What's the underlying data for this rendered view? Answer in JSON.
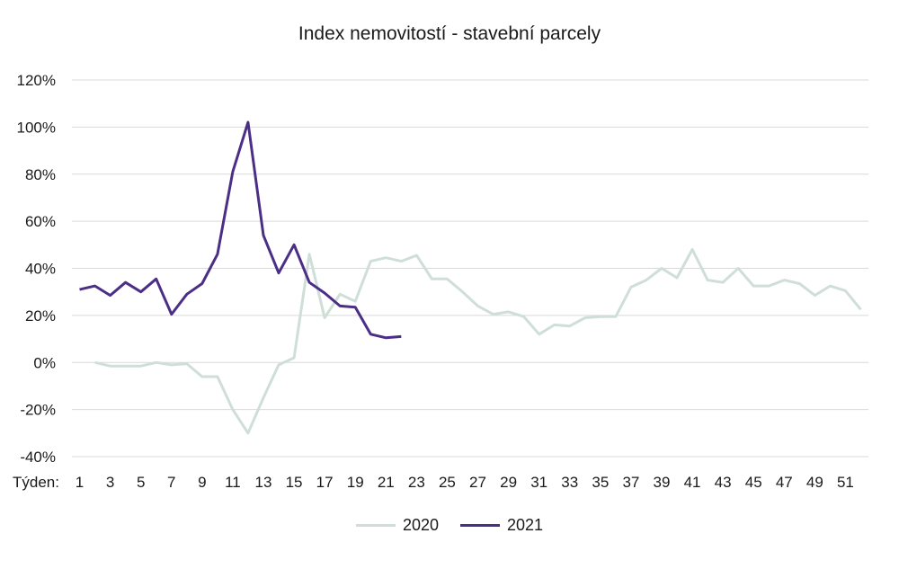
{
  "chart_data": {
    "type": "line",
    "title": "Index nemovitostí - stavební parcely",
    "xlabel": "Týden:",
    "ylabel": "",
    "ylim": [
      -40,
      120
    ],
    "y_ticks": [
      "120%",
      "100%",
      "80%",
      "60%",
      "40%",
      "20%",
      "0%",
      "-20%",
      "-40%"
    ],
    "y_tick_values": [
      120,
      100,
      80,
      60,
      40,
      20,
      0,
      -20,
      -40
    ],
    "x_range": [
      1,
      52
    ],
    "x_tick_labels": [
      "1",
      "3",
      "5",
      "7",
      "9",
      "11",
      "13",
      "15",
      "17",
      "19",
      "21",
      "23",
      "25",
      "27",
      "29",
      "31",
      "33",
      "35",
      "37",
      "39",
      "41",
      "43",
      "45",
      "47",
      "49",
      "51"
    ],
    "grid": "horizontal",
    "legend_position": "bottom",
    "series": [
      {
        "name": "2020",
        "color": "#cfdfd7",
        "x": [
          2,
          3,
          4,
          5,
          6,
          7,
          8,
          9,
          10,
          11,
          12,
          13,
          14,
          15,
          16,
          17,
          18,
          19,
          20,
          21,
          22,
          23,
          24,
          25,
          26,
          27,
          28,
          29,
          30,
          31,
          32,
          33,
          34,
          35,
          36,
          37,
          38,
          39,
          40,
          41,
          42,
          43,
          44,
          45,
          46,
          47,
          48,
          49,
          50,
          51,
          52
        ],
        "values": [
          0,
          -1.5,
          -1.5,
          -1.5,
          0,
          -1,
          -0.5,
          -6,
          -6,
          -20,
          -30,
          -15,
          -1,
          2,
          46,
          19,
          29,
          26,
          43,
          44.5,
          43,
          45.5,
          35.5,
          35.5,
          30,
          24,
          20.5,
          21.5,
          19.5,
          12,
          16,
          15.5,
          19,
          19.5,
          19.5,
          32,
          35,
          40,
          36,
          48,
          35,
          34,
          40,
          32.5,
          32.5,
          35,
          33.5,
          28.5,
          32.5,
          30.5,
          22.5
        ]
      },
      {
        "name": "2021",
        "color": "#4b2f86",
        "x": [
          1,
          2,
          3,
          4,
          5,
          6,
          7,
          8,
          9,
          10,
          11,
          12,
          13,
          14,
          15,
          16,
          17,
          18,
          19,
          20,
          21,
          22
        ],
        "values": [
          31,
          32.5,
          28.5,
          34,
          30,
          35.5,
          20.5,
          29,
          33.5,
          46,
          81,
          102,
          54,
          38,
          50,
          34,
          29.5,
          24,
          23.5,
          12,
          10.5,
          11
        ]
      }
    ]
  }
}
